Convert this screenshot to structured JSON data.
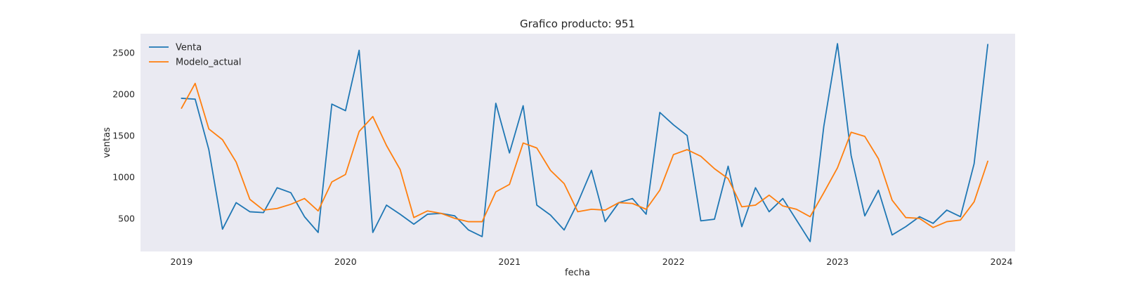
{
  "chart_data": {
    "type": "line",
    "title": "Grafico producto: 951",
    "xlabel": "fecha",
    "ylabel": "ventas",
    "x": [
      "2019-01",
      "2019-02",
      "2019-03",
      "2019-04",
      "2019-05",
      "2019-06",
      "2019-07",
      "2019-08",
      "2019-09",
      "2019-10",
      "2019-11",
      "2019-12",
      "2020-01",
      "2020-02",
      "2020-03",
      "2020-04",
      "2020-05",
      "2020-06",
      "2020-07",
      "2020-08",
      "2020-09",
      "2020-10",
      "2020-11",
      "2020-12",
      "2021-01",
      "2021-02",
      "2021-03",
      "2021-04",
      "2021-05",
      "2021-06",
      "2021-07",
      "2021-08",
      "2021-09",
      "2021-10",
      "2021-11",
      "2021-12",
      "2022-01",
      "2022-02",
      "2022-03",
      "2022-04",
      "2022-05",
      "2022-06",
      "2022-07",
      "2022-08",
      "2022-09",
      "2022-10",
      "2022-11",
      "2022-12",
      "2023-01",
      "2023-02",
      "2023-03",
      "2023-04",
      "2023-05",
      "2023-06",
      "2023-07",
      "2023-08",
      "2023-09",
      "2023-10",
      "2023-11",
      "2023-12"
    ],
    "series": [
      {
        "name": "Venta",
        "color": "#1f77b4",
        "values": [
          1950,
          1940,
          1330,
          370,
          690,
          580,
          570,
          870,
          810,
          520,
          330,
          1880,
          1800,
          2530,
          330,
          660,
          550,
          430,
          550,
          560,
          530,
          360,
          280,
          1890,
          1290,
          1860,
          660,
          540,
          360,
          690,
          1080,
          460,
          690,
          740,
          550,
          1780,
          1630,
          1500,
          470,
          490,
          1130,
          400,
          870,
          580,
          740,
          480,
          220,
          1610,
          2610,
          1260,
          530,
          840,
          300,
          400,
          520,
          440,
          600,
          520,
          1160,
          2600
        ]
      },
      {
        "name": "Modelo_actual",
        "color": "#ff7f0e",
        "values": [
          1830,
          2130,
          1580,
          1450,
          1180,
          730,
          600,
          620,
          670,
          740,
          590,
          940,
          1030,
          1550,
          1730,
          1380,
          1090,
          510,
          590,
          560,
          500,
          460,
          460,
          820,
          910,
          1410,
          1350,
          1080,
          920,
          580,
          610,
          600,
          690,
          680,
          610,
          840,
          1270,
          1330,
          1250,
          1100,
          980,
          640,
          660,
          780,
          650,
          610,
          520,
          810,
          1110,
          1540,
          1490,
          1220,
          720,
          510,
          500,
          390,
          460,
          480,
          700,
          1190
        ]
      }
    ],
    "x_ticks": [
      "2019",
      "2020",
      "2021",
      "2022",
      "2023",
      "2024"
    ],
    "y_ticks": [
      500,
      1000,
      1500,
      2000,
      2500
    ],
    "ylim": [
      100,
      2730
    ],
    "xlim": [
      "2018-10",
      "2024-02"
    ],
    "grid": false,
    "legend": "upper left",
    "plot_background": "#eaeaf2"
  }
}
